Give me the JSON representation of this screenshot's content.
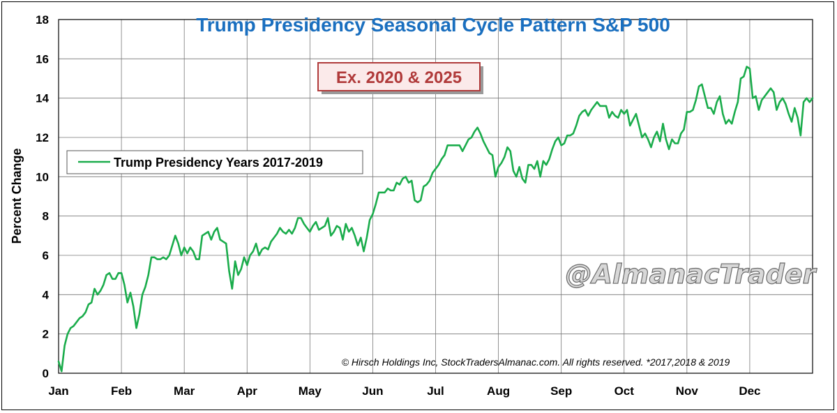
{
  "chart_data": {
    "type": "line",
    "title": "Trump Presidency Seasonal Cycle Pattern S&P 500",
    "subtitle_badge": "Ex. 2020 & 2025",
    "ylabel": "Percent Change",
    "xlabel": "",
    "ylim": [
      0,
      18
    ],
    "yticks": [
      0,
      2,
      4,
      6,
      8,
      10,
      12,
      14,
      16,
      18
    ],
    "months": [
      "Jan",
      "Feb",
      "Mar",
      "Apr",
      "May",
      "Jun",
      "Jul",
      "Aug",
      "Sep",
      "Oct",
      "Nov",
      "Dec"
    ],
    "grid": true,
    "legend": {
      "position": "left-middle",
      "label": "Trump Presidency Years 2017-2019"
    },
    "copyright": "© Hirsch Holdings Inc, StockTradersAlmanac.com. All rights reserved. *2017,2018 & 2019",
    "watermark": "@AlmanacTrader",
    "colors": {
      "line": "#1aac4b",
      "title": "#1a6fbf",
      "badge_text": "#b03a3a",
      "badge_border": "#b03a3a",
      "badge_fill": "#fbeaea",
      "grid": "#777777"
    },
    "series": [
      {
        "name": "Trump Presidency Years 2017-2019",
        "x": [
          0,
          1,
          2,
          3,
          4,
          5,
          6,
          7,
          8,
          9,
          10,
          11,
          12,
          13,
          14,
          15,
          16,
          17,
          18,
          19,
          20,
          21,
          22,
          23,
          24,
          25,
          26,
          27,
          28,
          29,
          30,
          31,
          32,
          33,
          34,
          35,
          36,
          37,
          38,
          39,
          40,
          41,
          42,
          43,
          44,
          45,
          46,
          47,
          48,
          49,
          50,
          51,
          52,
          53,
          54,
          55,
          56,
          57,
          58,
          59,
          60,
          61,
          62,
          63,
          64,
          65,
          66,
          67,
          68,
          69,
          70,
          71,
          72,
          73,
          74,
          75,
          76,
          77,
          78,
          79,
          80,
          81,
          82,
          83,
          84,
          85,
          86,
          87,
          88,
          89,
          90,
          91,
          92,
          93,
          94,
          95,
          96,
          97,
          98,
          99,
          100,
          101,
          102,
          103,
          104,
          105,
          106,
          107,
          108,
          109,
          110,
          111,
          112,
          113,
          114,
          115,
          116,
          117,
          118,
          119,
          120,
          121,
          122,
          123,
          124,
          125,
          126,
          127,
          128,
          129,
          130,
          131,
          132,
          133,
          134,
          135,
          136,
          137,
          138,
          139,
          140,
          141,
          142,
          143,
          144,
          145,
          146,
          147,
          148,
          149,
          150,
          151,
          152,
          153,
          154,
          155,
          156,
          157,
          158,
          159,
          160,
          161,
          162,
          163,
          164,
          165,
          166,
          167,
          168,
          169,
          170,
          171,
          172,
          173,
          174,
          175,
          176,
          177,
          178,
          179,
          180,
          181,
          182,
          183,
          184,
          185,
          186,
          187,
          188,
          189,
          190,
          191,
          192,
          193,
          194,
          195,
          196,
          197,
          198,
          199,
          200,
          201,
          202,
          203,
          204,
          205,
          206,
          207,
          208,
          209,
          210,
          211,
          212,
          213,
          214,
          215,
          216,
          217,
          218,
          219,
          220,
          221,
          222,
          223,
          224,
          225,
          226,
          227,
          228,
          229,
          230,
          231,
          232,
          233,
          234,
          235,
          236,
          237,
          238,
          239,
          240,
          241,
          242,
          243,
          244,
          245,
          246,
          247,
          248,
          249,
          250,
          251,
          252
        ],
        "values": [
          0.6,
          0.1,
          1.4,
          2.0,
          2.3,
          2.4,
          2.6,
          2.8,
          2.9,
          3.1,
          3.5,
          3.6,
          4.3,
          4.0,
          4.2,
          4.5,
          5.0,
          5.1,
          4.8,
          4.8,
          5.1,
          5.1,
          4.5,
          3.6,
          4.1,
          3.4,
          2.3,
          3.0,
          4.0,
          4.4,
          5.0,
          5.9,
          5.9,
          5.8,
          5.8,
          5.9,
          5.8,
          6.0,
          6.5,
          7.0,
          6.6,
          6.0,
          6.4,
          6.1,
          6.4,
          6.2,
          5.8,
          5.8,
          7.0,
          7.1,
          7.2,
          6.8,
          7.2,
          7.4,
          6.8,
          6.7,
          6.6,
          5.2,
          4.3,
          5.7,
          5.0,
          5.3,
          5.9,
          5.5,
          6.0,
          6.2,
          6.6,
          6.0,
          6.3,
          6.4,
          6.3,
          6.7,
          6.9,
          7.1,
          7.4,
          7.2,
          7.1,
          7.3,
          7.1,
          7.4,
          7.9,
          7.9,
          7.6,
          7.4,
          7.2,
          7.5,
          7.7,
          7.3,
          7.4,
          7.5,
          7.9,
          7.0,
          7.2,
          7.5,
          7.4,
          6.8,
          7.6,
          7.2,
          7.4,
          7.0,
          6.5,
          6.9,
          6.2,
          6.9,
          7.8,
          8.1,
          8.6,
          9.2,
          9.2,
          9.2,
          9.4,
          9.3,
          9.3,
          9.7,
          9.6,
          9.9,
          10.0,
          9.7,
          9.8,
          8.8,
          8.7,
          8.8,
          9.5,
          9.6,
          9.8,
          10.2,
          10.4,
          10.6,
          10.9,
          11.1,
          11.6,
          11.6,
          11.6,
          11.6,
          11.6,
          11.3,
          11.6,
          11.9,
          12.0,
          12.3,
          12.5,
          12.2,
          11.8,
          11.5,
          11.2,
          11.1,
          10.0,
          10.5,
          10.7,
          11.0,
          11.5,
          11.3,
          10.3,
          10.0,
          10.5,
          9.9,
          9.7,
          10.6,
          10.6,
          10.4,
          10.8,
          10.0,
          10.8,
          10.6,
          10.9,
          11.4,
          11.8,
          12.0,
          11.6,
          11.7,
          12.1,
          12.1,
          12.2,
          12.6,
          13.1,
          13.3,
          13.4,
          13.1,
          13.4,
          13.6,
          13.8,
          13.6,
          13.6,
          13.6,
          13.0,
          13.3,
          13.1,
          13.0,
          13.4,
          13.2,
          13.4,
          12.6,
          12.9,
          13.2,
          12.6,
          12.0,
          12.2,
          11.9,
          11.5,
          12.0,
          12.3,
          11.8,
          12.7,
          11.9,
          11.4,
          11.9,
          11.7,
          11.7,
          12.2,
          12.4,
          13.3,
          13.3,
          13.4,
          13.9,
          14.6,
          14.7,
          14.1,
          13.5,
          13.5,
          13.2,
          13.8,
          14.1,
          13.2,
          12.7,
          12.9,
          12.7,
          13.3,
          13.8,
          15.0,
          15.1,
          15.6,
          15.5,
          14.0,
          14.1,
          13.4,
          13.9,
          14.1,
          14.3,
          14.5,
          14.3,
          13.4,
          13.8,
          14.0,
          13.7,
          13.2,
          12.8,
          13.5,
          13.0,
          12.1,
          13.8,
          14.0,
          13.8,
          14.0
        ]
      }
    ]
  }
}
